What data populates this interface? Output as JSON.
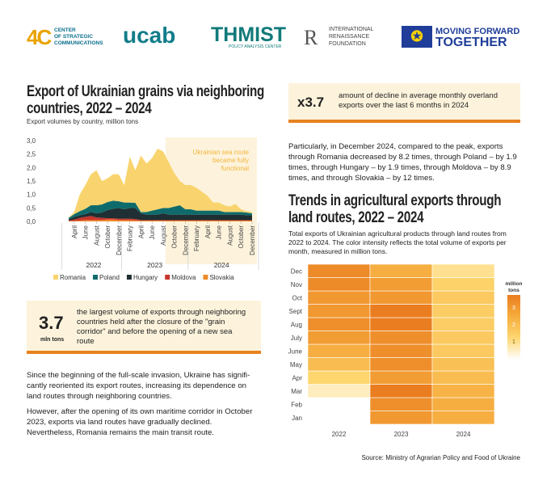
{
  "logos": {
    "csc_mark": "4C",
    "csc_text": [
      "CENTER",
      "OF STRATEGIC",
      "COMMUNICATIONS"
    ],
    "ucab": "ucab",
    "thmist": "THMIST",
    "thmist_sub": "POLICY ANALYSIS CENTER",
    "irf_mark": "R",
    "irf_text": [
      "INTERNATIONAL",
      "RENAISSANCE",
      "FOUNDATION"
    ],
    "eu_text": [
      "MOVING FORWARD",
      "TOGETHER"
    ]
  },
  "left": {
    "title": "Export of Ukrainian grains via neighboring countries, 2022 – 2024",
    "subtitle": "Export volumes by country, million tons",
    "highlight": {
      "value": "3.7",
      "unit": "mln tons",
      "text": "the largest volume of exports through neighbor­ing countries held after the closure of the \"grain corridor\" and before the opening of a new sea route"
    },
    "paragraphs": [
      "Since the beginning of the full-scale invasion, Ukraine has signifi­cantly reoriented its export routes, increasing its dependence on land routes through neighboring countries.",
      "However, after the opening of its own maritime corridor in October 2023, exports via land routes have gradually declined. Nevertheless, Romania remains the main transit route."
    ]
  },
  "right": {
    "highlight": {
      "value": "x3.7",
      "text": "amount of decline in average monthly overland exports over the last 6 months in 2024"
    },
    "paragraph": "Particularly, in December 2024, compared to the peak, exports through Romania decreased by 8.2 times, through Poland – by 1.9 times, through Hungary – by 1.9 times, through Moldova – by 8.9 times, and through Slovakia – by 12 times.",
    "title": "Trends in agricultural exports through land routes, 2022 – 2024",
    "description": "Total exports of Ukrainian agricultural products through land routes from 2022 to 2024. The color intensity reflects the total volume of ex­ports per month, measured in million tons."
  },
  "source": "Source: Ministry of Agrarian Policy and Food of Ukraine",
  "colors": {
    "Romania": "#f9d46e",
    "Poland": "#0f6b6b",
    "Hungary": "#1f2f33",
    "Moldova": "#c8342b",
    "Slovakia": "#ee8a2a",
    "accent": "#e7821f"
  },
  "chart_data": [
    {
      "type": "area",
      "stacked": true,
      "title": "Export of Ukrainian grains via neighboring countries, 2022 – 2024",
      "ylabel": "million tons",
      "ylim": [
        0,
        3
      ],
      "yticks": [
        "0,0",
        "0,5",
        "1,0",
        "1,5",
        "2,0",
        "2,5",
        "3,0"
      ],
      "xtick_labels": [
        "April",
        "June",
        "August",
        "October",
        "December",
        "February",
        "April",
        "June",
        "August",
        "October",
        "December",
        "February",
        "April",
        "June",
        "August",
        "October",
        "December"
      ],
      "years": [
        "2022",
        "2023",
        "2024"
      ],
      "annotation": "Ukrainian sea route became fully functional",
      "x": [
        "2022-03",
        "2022-04",
        "2022-05",
        "2022-06",
        "2022-07",
        "2022-08",
        "2022-09",
        "2022-10",
        "2022-11",
        "2022-12",
        "2023-01",
        "2023-02",
        "2023-03",
        "2023-04",
        "2023-05",
        "2023-06",
        "2023-07",
        "2023-08",
        "2023-09",
        "2023-10",
        "2023-11",
        "2023-12",
        "2024-01",
        "2024-02",
        "2024-03",
        "2024-04",
        "2024-05",
        "2024-06",
        "2024-07",
        "2024-08",
        "2024-09",
        "2024-10",
        "2024-11",
        "2024-12"
      ],
      "series": [
        {
          "name": "Slovakia",
          "values": [
            0.01,
            0.02,
            0.03,
            0.05,
            0.05,
            0.05,
            0.05,
            0.07,
            0.07,
            0.05,
            0.05,
            0.05,
            0.04,
            0.03,
            0.03,
            0.03,
            0.03,
            0.03,
            0.03,
            0.03,
            0.03,
            0.03,
            0.03,
            0.03,
            0.03,
            0.03,
            0.03,
            0.03,
            0.03,
            0.03,
            0.03,
            0.03,
            0.03,
            0.03
          ]
        },
        {
          "name": "Moldova",
          "values": [
            0.02,
            0.05,
            0.1,
            0.12,
            0.15,
            0.1,
            0.08,
            0.05,
            0.05,
            0.05,
            0.05,
            0.05,
            0.05,
            0.02,
            0.02,
            0.02,
            0.02,
            0.02,
            0.02,
            0.02,
            0.02,
            0.02,
            0.02,
            0.02,
            0.02,
            0.02,
            0.02,
            0.02,
            0.02,
            0.02,
            0.02,
            0.02,
            0.02,
            0.02
          ]
        },
        {
          "name": "Hungary",
          "values": [
            0.05,
            0.1,
            0.1,
            0.1,
            0.15,
            0.15,
            0.2,
            0.3,
            0.35,
            0.4,
            0.35,
            0.4,
            0.4,
            0.25,
            0.2,
            0.2,
            0.2,
            0.25,
            0.2,
            0.2,
            0.2,
            0.2,
            0.2,
            0.2,
            0.2,
            0.2,
            0.2,
            0.2,
            0.2,
            0.2,
            0.2,
            0.2,
            0.18,
            0.17
          ]
        },
        {
          "name": "Poland",
          "values": [
            0.05,
            0.1,
            0.15,
            0.2,
            0.25,
            0.3,
            0.3,
            0.3,
            0.3,
            0.25,
            0.25,
            0.2,
            0.2,
            0.05,
            0.1,
            0.15,
            0.2,
            0.2,
            0.25,
            0.3,
            0.35,
            0.2,
            0.2,
            0.15,
            0.15,
            0.15,
            0.15,
            0.15,
            0.1,
            0.1,
            0.1,
            0.1,
            0.1,
            0.08
          ]
        },
        {
          "name": "Romania",
          "values": [
            0.02,
            0.08,
            0.62,
            0.88,
            1.15,
            1.3,
            0.87,
            0.88,
            0.98,
            1.0,
            0.65,
            1.7,
            1.21,
            2.1,
            1.8,
            1.95,
            2.25,
            2.1,
            1.7,
            1.25,
            0.9,
            0.9,
            0.9,
            0.85,
            0.7,
            0.55,
            0.3,
            0.3,
            0.25,
            0.2,
            0.3,
            0.1,
            0.05,
            0.05
          ]
        }
      ],
      "legend": [
        "Romania",
        "Poland",
        "Hungary",
        "Moldova",
        "Slovakia"
      ],
      "legend_position": "bottom"
    },
    {
      "type": "heatmap",
      "title": "Trends in agricultural exports through land routes, 2022 – 2024",
      "unit": "million tons",
      "columns": [
        "2022",
        "2023",
        "2024"
      ],
      "rows": [
        "Jan",
        "Feb",
        "Mar",
        "Apr",
        "May",
        "June",
        "July",
        "Aug",
        "Sept",
        "Oct",
        "Nov",
        "Dec"
      ],
      "values": [
        [
          null,
          2.4,
          1.9
        ],
        [
          null,
          2.6,
          1.9
        ],
        [
          0.3,
          3.0,
          1.8
        ],
        [
          1.0,
          2.3,
          1.6
        ],
        [
          1.6,
          2.6,
          1.5
        ],
        [
          1.9,
          2.6,
          1.3
        ],
        [
          2.3,
          2.6,
          1.3
        ],
        [
          2.6,
          3.0,
          1.2
        ],
        [
          2.4,
          3.0,
          1.2
        ],
        [
          2.4,
          2.4,
          1.3
        ],
        [
          2.7,
          2.3,
          1.1
        ],
        [
          2.7,
          1.9,
          0.7
        ]
      ],
      "legend_title": "million tons",
      "legend_ticks": [
        "1",
        "2",
        "3"
      ]
    }
  ]
}
